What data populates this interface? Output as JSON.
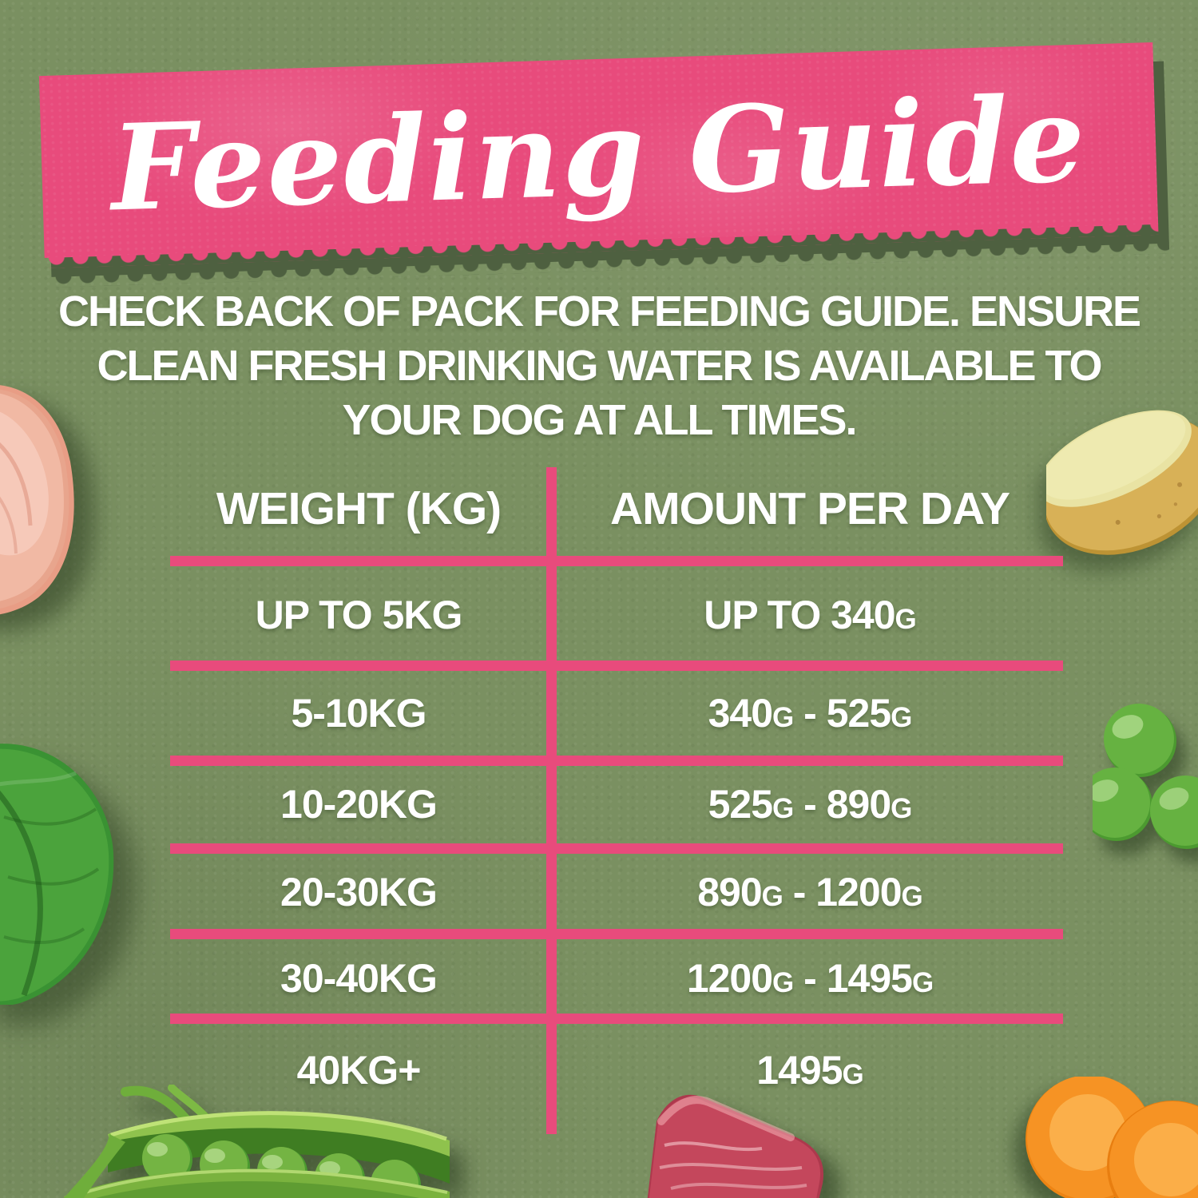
{
  "colors": {
    "background_green": "#7a9061",
    "accent_pink": "#e84b7c",
    "shadow_olive": "#4e6040",
    "text_white": "#ffffff"
  },
  "banner": {
    "title": "Feeding Guide"
  },
  "intro": {
    "lines": [
      "CHECK BACK OF PACK FOR FEEDING GUIDE. ENSURE",
      "CLEAN FRESH DRINKING WATER IS AVAILABLE TO",
      "YOUR DOG AT ALL TIMES."
    ]
  },
  "table": {
    "headers": {
      "weight": "WEIGHT (KG)",
      "amount": "AMOUNT PER DAY"
    },
    "rows": [
      {
        "weight": "UP TO 5KG",
        "amount": "UP TO 340G"
      },
      {
        "weight": "5-10KG",
        "amount": "340G - 525G"
      },
      {
        "weight": "10-20KG",
        "amount": "525G - 890G"
      },
      {
        "weight": "20-30KG",
        "amount": "890G - 1200G"
      },
      {
        "weight": "30-40KG",
        "amount": "1200G - 1495G"
      },
      {
        "weight": "40KG+",
        "amount": "1495G"
      }
    ]
  },
  "photos": {
    "top_left": "chicken-fillet-photo",
    "top_right": "potato-half-photo",
    "mid_left": "basil-leaf-photo",
    "mid_right": "green-peas-photo",
    "bottom_left": "pea-pod-photo",
    "bottom_center": "raw-meat-photo",
    "bottom_right": "carrot-slices-photo"
  }
}
